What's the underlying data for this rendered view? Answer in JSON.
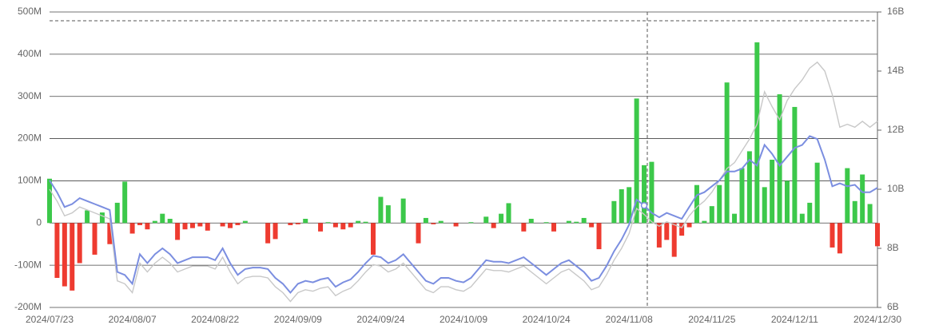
{
  "chart_data": {
    "type": "bar_line",
    "categories": [
      "2024/07/23",
      null,
      null,
      null,
      null,
      null,
      null,
      null,
      null,
      null,
      null,
      "2024/08/07",
      null,
      null,
      null,
      null,
      null,
      null,
      null,
      null,
      null,
      null,
      "2024/08/22",
      null,
      null,
      null,
      null,
      null,
      null,
      null,
      null,
      null,
      null,
      "2024/09/09",
      null,
      null,
      null,
      null,
      null,
      null,
      null,
      null,
      null,
      null,
      "2024/09/24",
      null,
      null,
      null,
      null,
      null,
      null,
      null,
      null,
      null,
      null,
      "2024/10/09",
      null,
      null,
      null,
      null,
      null,
      null,
      null,
      null,
      null,
      null,
      "2024/10/24",
      null,
      null,
      null,
      null,
      null,
      null,
      null,
      null,
      null,
      null,
      "2024/11/08",
      null,
      null,
      null,
      null,
      null,
      null,
      null,
      null,
      null,
      null,
      "2024/11/25",
      null,
      null,
      null,
      null,
      null,
      null,
      null,
      null,
      null,
      null,
      "2024/12/11",
      null,
      null,
      null,
      null,
      null,
      null,
      null,
      null,
      null,
      null,
      "2024/12/30"
    ],
    "values": [
      105,
      -130,
      -150,
      -160,
      -95,
      30,
      -75,
      25,
      -50,
      48,
      98,
      -25,
      -5,
      -15,
      5,
      22,
      10,
      -40,
      -15,
      -12,
      -8,
      -18,
      0,
      -8,
      -12,
      -5,
      5,
      0,
      0,
      -48,
      -38,
      0,
      -5,
      -3,
      10,
      0,
      -20,
      2,
      -10,
      -15,
      -10,
      5,
      3,
      -75,
      62,
      42,
      0,
      58,
      0,
      -48,
      12,
      -3,
      5,
      0,
      -8,
      0,
      2,
      0,
      15,
      -12,
      22,
      47,
      0,
      -20,
      10,
      0,
      2,
      -20,
      0,
      5,
      3,
      12,
      -10,
      -62,
      0,
      52,
      80,
      85,
      295,
      137,
      145,
      -58,
      -40,
      -80,
      -30,
      -10,
      90,
      5,
      40,
      90,
      333,
      22,
      130,
      170,
      428,
      85,
      150,
      305,
      100,
      275,
      22,
      48,
      143,
      0,
      -58,
      -72,
      130,
      52,
      115,
      45,
      -55
    ],
    "positive_color": "#3cc84a",
    "negative_color": "#ee3b30",
    "series": [
      {
        "color": "#7b8ee0",
        "axis": "y2",
        "values": [
          10.3,
          9.9,
          9.4,
          9.5,
          9.7,
          9.6,
          9.5,
          9.4,
          9.3,
          7.2,
          7.1,
          6.8,
          7.8,
          7.5,
          7.8,
          8.0,
          7.8,
          7.5,
          7.6,
          7.7,
          7.7,
          7.7,
          7.6,
          8.0,
          7.5,
          7.1,
          7.3,
          7.35,
          7.35,
          7.3,
          7.0,
          6.8,
          6.5,
          6.8,
          6.9,
          6.85,
          6.95,
          7.0,
          6.7,
          6.85,
          6.95,
          7.2,
          7.5,
          7.75,
          7.7,
          7.5,
          7.6,
          7.8,
          7.5,
          7.2,
          6.9,
          6.8,
          7.0,
          7.0,
          6.9,
          6.85,
          7.0,
          7.3,
          7.6,
          7.55,
          7.55,
          7.5,
          7.6,
          7.7,
          7.5,
          7.3,
          7.1,
          7.3,
          7.5,
          7.6,
          7.4,
          7.2,
          6.9,
          7.0,
          7.4,
          7.9,
          8.3,
          8.8,
          9.65,
          9.45,
          9.2,
          9.05,
          9.2,
          9.1,
          9.0,
          9.4,
          9.8,
          9.9,
          10.1,
          10.3,
          10.6,
          10.6,
          10.7,
          11.0,
          10.8,
          11.5,
          11.2,
          10.8,
          11.1,
          11.4,
          11.5,
          11.8,
          11.7,
          11.0,
          10.1,
          10.2,
          10.1,
          10.15,
          9.9,
          9.9,
          10.05
        ]
      },
      {
        "color": "#c8c8c8",
        "axis": "y2",
        "values": [
          10.0,
          9.6,
          9.1,
          9.2,
          9.4,
          9.3,
          9.2,
          9.1,
          9.0,
          6.9,
          6.8,
          6.5,
          7.5,
          7.2,
          7.5,
          7.7,
          7.5,
          7.2,
          7.3,
          7.4,
          7.4,
          7.4,
          7.3,
          7.7,
          7.2,
          6.8,
          7.0,
          7.05,
          7.05,
          7.0,
          6.7,
          6.5,
          6.2,
          6.5,
          6.6,
          6.55,
          6.65,
          6.7,
          6.4,
          6.55,
          6.65,
          6.9,
          7.2,
          7.45,
          7.4,
          7.2,
          7.3,
          7.5,
          7.2,
          6.9,
          6.6,
          6.5,
          6.7,
          6.7,
          6.6,
          6.55,
          6.7,
          7.0,
          7.3,
          7.25,
          7.25,
          7.2,
          7.3,
          7.4,
          7.2,
          7.0,
          6.8,
          7.0,
          7.2,
          7.3,
          7.1,
          6.9,
          6.6,
          6.7,
          7.1,
          7.6,
          8.0,
          8.5,
          9.35,
          9.15,
          8.9,
          8.75,
          8.9,
          8.8,
          8.7,
          9.1,
          9.4,
          9.6,
          9.9,
          10.3,
          10.7,
          10.9,
          11.3,
          11.7,
          12.2,
          13.3,
          12.8,
          12.35,
          13.0,
          13.4,
          13.7,
          14.1,
          14.3,
          14.0,
          13.2,
          12.1,
          12.2,
          12.1,
          12.3,
          12.1,
          12.3
        ]
      }
    ],
    "ylim": [
      -200,
      500
    ],
    "yticks": [
      {
        "value": -200,
        "label": "-200M"
      },
      {
        "value": -100,
        "label": "-100M"
      },
      0,
      {
        "value": 100,
        "label": "100M"
      },
      {
        "value": 200,
        "label": "200M"
      },
      {
        "value": 300,
        "label": "300M"
      },
      {
        "value": 400,
        "label": "400M"
      },
      {
        "value": 500,
        "label": "500M"
      }
    ],
    "y2lim": [
      6,
      16
    ],
    "y2ticks": [
      {
        "value": 6,
        "label": "6B"
      },
      {
        "value": 8,
        "label": "8B"
      },
      {
        "value": 10,
        "label": "10B"
      },
      {
        "value": 12,
        "label": "12B"
      },
      {
        "value": 14,
        "label": "14B"
      },
      {
        "value": 16,
        "label": "16B"
      }
    ],
    "grid": true
  }
}
